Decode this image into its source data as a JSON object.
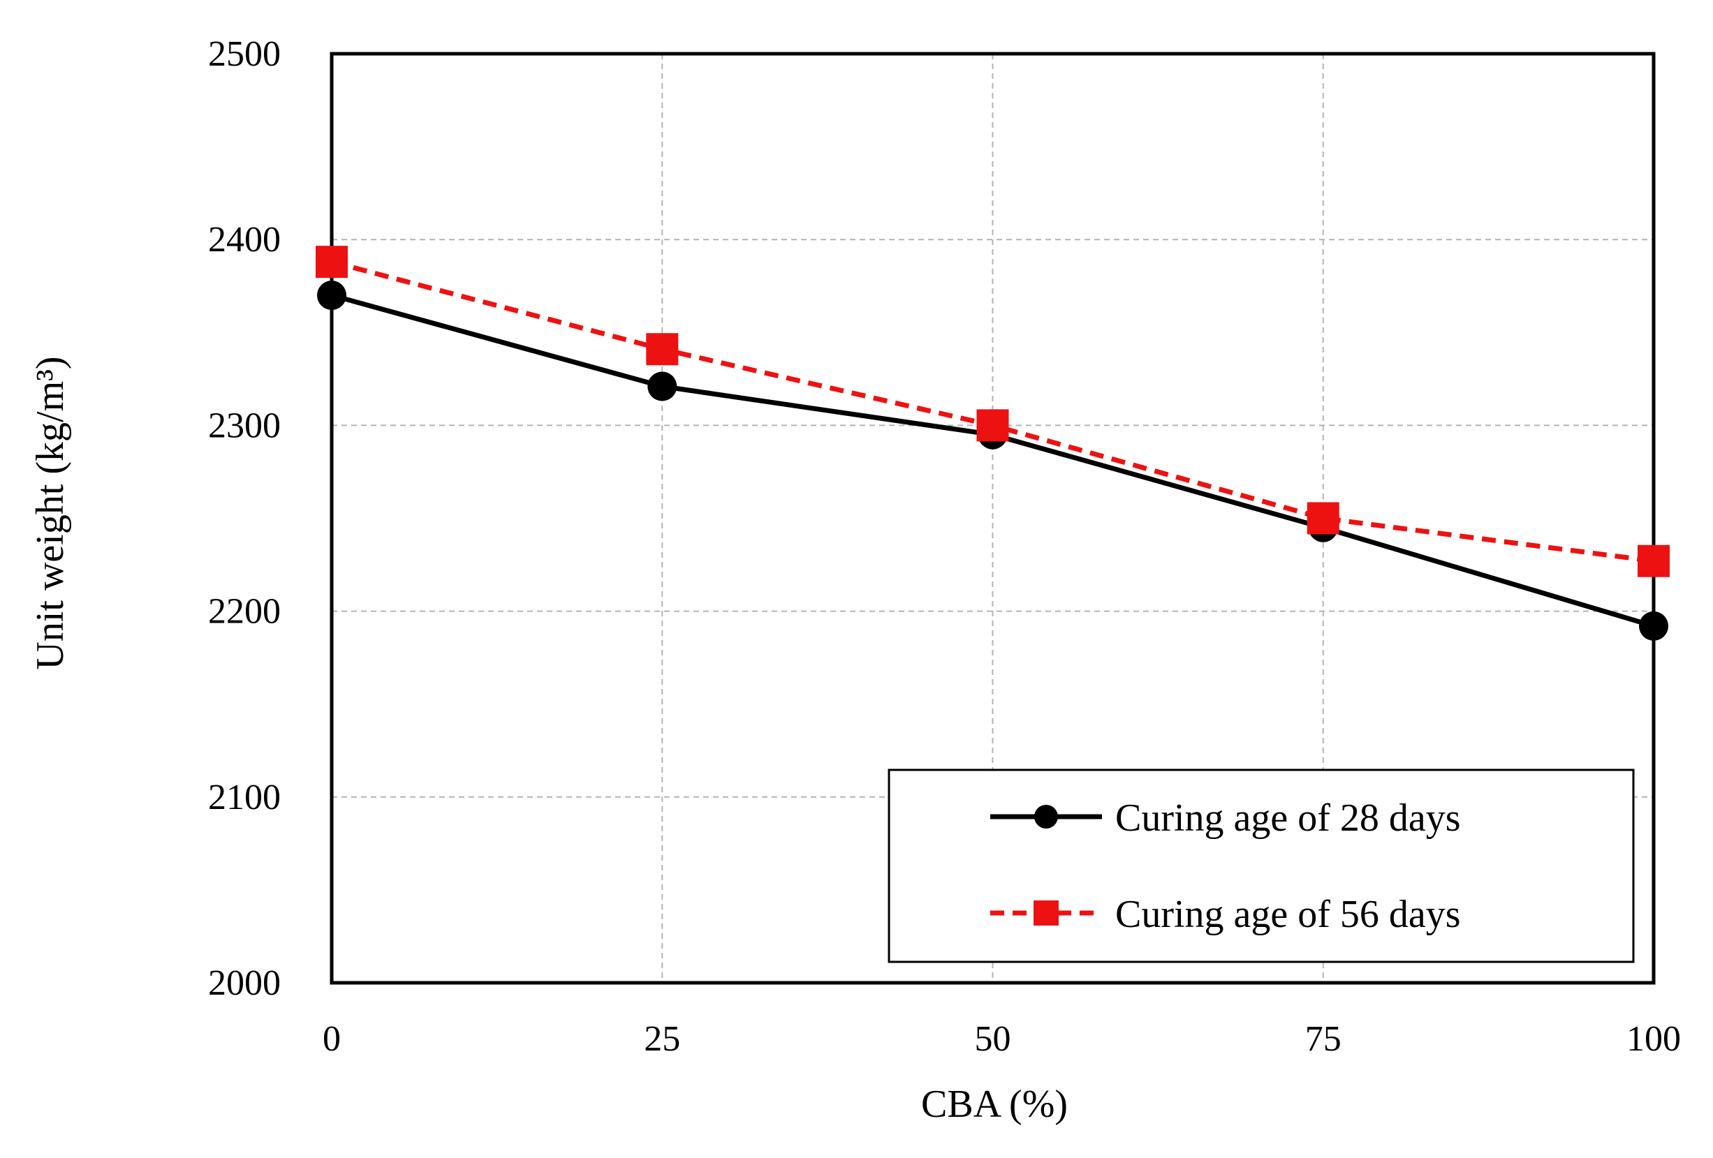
{
  "chart_data": {
    "type": "line",
    "title": "",
    "xlabel": "CBA (%)",
    "ylabel": "Unit weight  (kg/m³)",
    "x": [
      0,
      25,
      50,
      75,
      100
    ],
    "x_ticks": [
      "0",
      "25",
      "50",
      "75",
      "100"
    ],
    "y_ticks": [
      "2000",
      "2100",
      "2200",
      "2300",
      "2400",
      "2500"
    ],
    "xlim": [
      0,
      100
    ],
    "ylim": [
      2000,
      2500
    ],
    "grid": true,
    "legend_position": "bottom-right",
    "series": [
      {
        "name": "Curing age of 28 days",
        "values": [
          2370,
          2321,
          2295,
          2245,
          2192
        ],
        "color": "#000000",
        "line_style": "solid",
        "marker": "circle"
      },
      {
        "name": "Curing age of 56 days",
        "values": [
          2388,
          2341,
          2300,
          2250,
          2227
        ],
        "color": "#ee1111",
        "line_style": "dashed",
        "marker": "square"
      }
    ]
  }
}
